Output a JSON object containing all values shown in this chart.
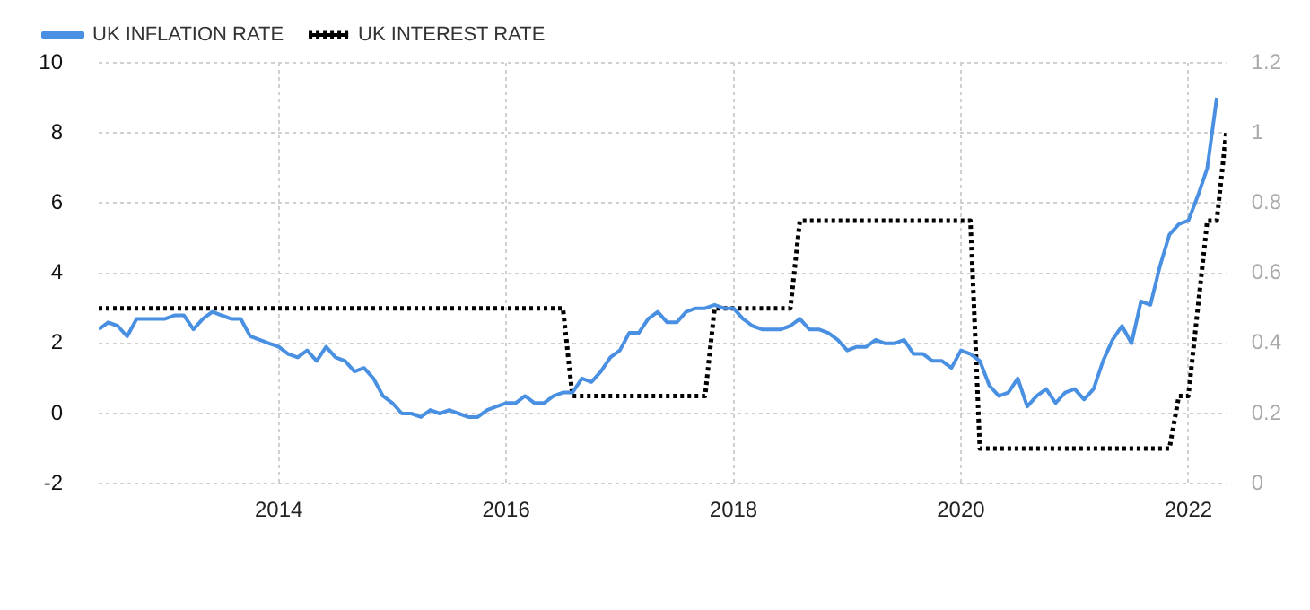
{
  "chart_data": {
    "type": "line",
    "x": [
      "2012-06",
      "2012-07",
      "2012-08",
      "2012-09",
      "2012-10",
      "2012-11",
      "2012-12",
      "2013-01",
      "2013-02",
      "2013-03",
      "2013-04",
      "2013-05",
      "2013-06",
      "2013-07",
      "2013-08",
      "2013-09",
      "2013-10",
      "2013-11",
      "2013-12",
      "2014-01",
      "2014-02",
      "2014-03",
      "2014-04",
      "2014-05",
      "2014-06",
      "2014-07",
      "2014-08",
      "2014-09",
      "2014-10",
      "2014-11",
      "2014-12",
      "2015-01",
      "2015-02",
      "2015-03",
      "2015-04",
      "2015-05",
      "2015-06",
      "2015-07",
      "2015-08",
      "2015-09",
      "2015-10",
      "2015-11",
      "2015-12",
      "2016-01",
      "2016-02",
      "2016-03",
      "2016-04",
      "2016-05",
      "2016-06",
      "2016-07",
      "2016-08",
      "2016-09",
      "2016-10",
      "2016-11",
      "2016-12",
      "2017-01",
      "2017-02",
      "2017-03",
      "2017-04",
      "2017-05",
      "2017-06",
      "2017-07",
      "2017-08",
      "2017-09",
      "2017-10",
      "2017-11",
      "2017-12",
      "2018-01",
      "2018-02",
      "2018-03",
      "2018-04",
      "2018-05",
      "2018-06",
      "2018-07",
      "2018-08",
      "2018-09",
      "2018-10",
      "2018-11",
      "2018-12",
      "2019-01",
      "2019-02",
      "2019-03",
      "2019-04",
      "2019-05",
      "2019-06",
      "2019-07",
      "2019-08",
      "2019-09",
      "2019-10",
      "2019-11",
      "2019-12",
      "2020-01",
      "2020-02",
      "2020-03",
      "2020-04",
      "2020-05",
      "2020-06",
      "2020-07",
      "2020-08",
      "2020-09",
      "2020-10",
      "2020-11",
      "2020-12",
      "2021-01",
      "2021-02",
      "2021-03",
      "2021-04",
      "2021-05",
      "2021-06",
      "2021-07",
      "2021-08",
      "2021-09",
      "2021-10",
      "2021-11",
      "2021-12",
      "2022-01",
      "2022-02",
      "2022-03",
      "2022-04",
      "2022-05"
    ],
    "series": [
      {
        "name": "UK INFLATION RATE",
        "color": "#4a90e2",
        "line_style": "solid",
        "values": [
          2.4,
          2.6,
          2.5,
          2.2,
          2.7,
          2.7,
          2.7,
          2.7,
          2.8,
          2.8,
          2.4,
          2.7,
          2.9,
          2.8,
          2.7,
          2.7,
          2.2,
          2.1,
          2.0,
          1.9,
          1.7,
          1.6,
          1.8,
          1.5,
          1.9,
          1.6,
          1.5,
          1.2,
          1.3,
          1.0,
          0.5,
          0.3,
          0.0,
          0.0,
          -0.1,
          0.1,
          0.0,
          0.1,
          0.0,
          -0.1,
          -0.1,
          0.1,
          0.2,
          0.3,
          0.3,
          0.5,
          0.3,
          0.3,
          0.5,
          0.6,
          0.6,
          1.0,
          0.9,
          1.2,
          1.6,
          1.8,
          2.3,
          2.3,
          2.7,
          2.9,
          2.6,
          2.6,
          2.9,
          3.0,
          3.0,
          3.1,
          3.0,
          3.0,
          2.7,
          2.5,
          2.4,
          2.4,
          2.4,
          2.5,
          2.7,
          2.4,
          2.4,
          2.3,
          2.1,
          1.8,
          1.9,
          1.9,
          2.1,
          2.0,
          2.0,
          2.1,
          1.7,
          1.7,
          1.5,
          1.5,
          1.3,
          1.8,
          1.7,
          1.5,
          0.8,
          0.5,
          0.6,
          1.0,
          0.2,
          0.5,
          0.7,
          0.3,
          0.6,
          0.7,
          0.4,
          0.7,
          1.5,
          2.1,
          2.5,
          2.0,
          3.2,
          3.1,
          4.2,
          5.1,
          5.4,
          5.5,
          6.2,
          7.0,
          9.0,
          null
        ]
      },
      {
        "name": "UK INTEREST RATE",
        "color": "#000000",
        "line_style": "dotted",
        "axis": "y2",
        "values": [
          0.5,
          0.5,
          0.5,
          0.5,
          0.5,
          0.5,
          0.5,
          0.5,
          0.5,
          0.5,
          0.5,
          0.5,
          0.5,
          0.5,
          0.5,
          0.5,
          0.5,
          0.5,
          0.5,
          0.5,
          0.5,
          0.5,
          0.5,
          0.5,
          0.5,
          0.5,
          0.5,
          0.5,
          0.5,
          0.5,
          0.5,
          0.5,
          0.5,
          0.5,
          0.5,
          0.5,
          0.5,
          0.5,
          0.5,
          0.5,
          0.5,
          0.5,
          0.5,
          0.5,
          0.5,
          0.5,
          0.5,
          0.5,
          0.5,
          0.5,
          0.25,
          0.25,
          0.25,
          0.25,
          0.25,
          0.25,
          0.25,
          0.25,
          0.25,
          0.25,
          0.25,
          0.25,
          0.25,
          0.25,
          0.25,
          0.5,
          0.5,
          0.5,
          0.5,
          0.5,
          0.5,
          0.5,
          0.5,
          0.5,
          0.75,
          0.75,
          0.75,
          0.75,
          0.75,
          0.75,
          0.75,
          0.75,
          0.75,
          0.75,
          0.75,
          0.75,
          0.75,
          0.75,
          0.75,
          0.75,
          0.75,
          0.75,
          0.75,
          0.1,
          0.1,
          0.1,
          0.1,
          0.1,
          0.1,
          0.1,
          0.1,
          0.1,
          0.1,
          0.1,
          0.1,
          0.1,
          0.1,
          0.1,
          0.1,
          0.1,
          0.1,
          0.1,
          0.1,
          0.1,
          0.25,
          0.25,
          0.5,
          0.75,
          0.75,
          1.0
        ]
      }
    ],
    "xlim": [
      "2012-06",
      "2022-05"
    ],
    "xticks": [
      {
        "value": "2014",
        "label": "2014"
      },
      {
        "value": "2016",
        "label": "2016"
      },
      {
        "value": "2018",
        "label": "2018"
      },
      {
        "value": "2020",
        "label": "2020"
      },
      {
        "value": "2022",
        "label": "2022"
      }
    ],
    "ylim": [
      -2,
      10
    ],
    "yticks": [
      -2,
      0,
      2,
      4,
      6,
      8,
      10
    ],
    "y2lim": [
      0,
      1.2
    ],
    "y2ticks": [
      0,
      0.2,
      0.4,
      0.6,
      0.8,
      1,
      1.2
    ],
    "grid": true,
    "legend": "top left",
    "marker": "none"
  }
}
